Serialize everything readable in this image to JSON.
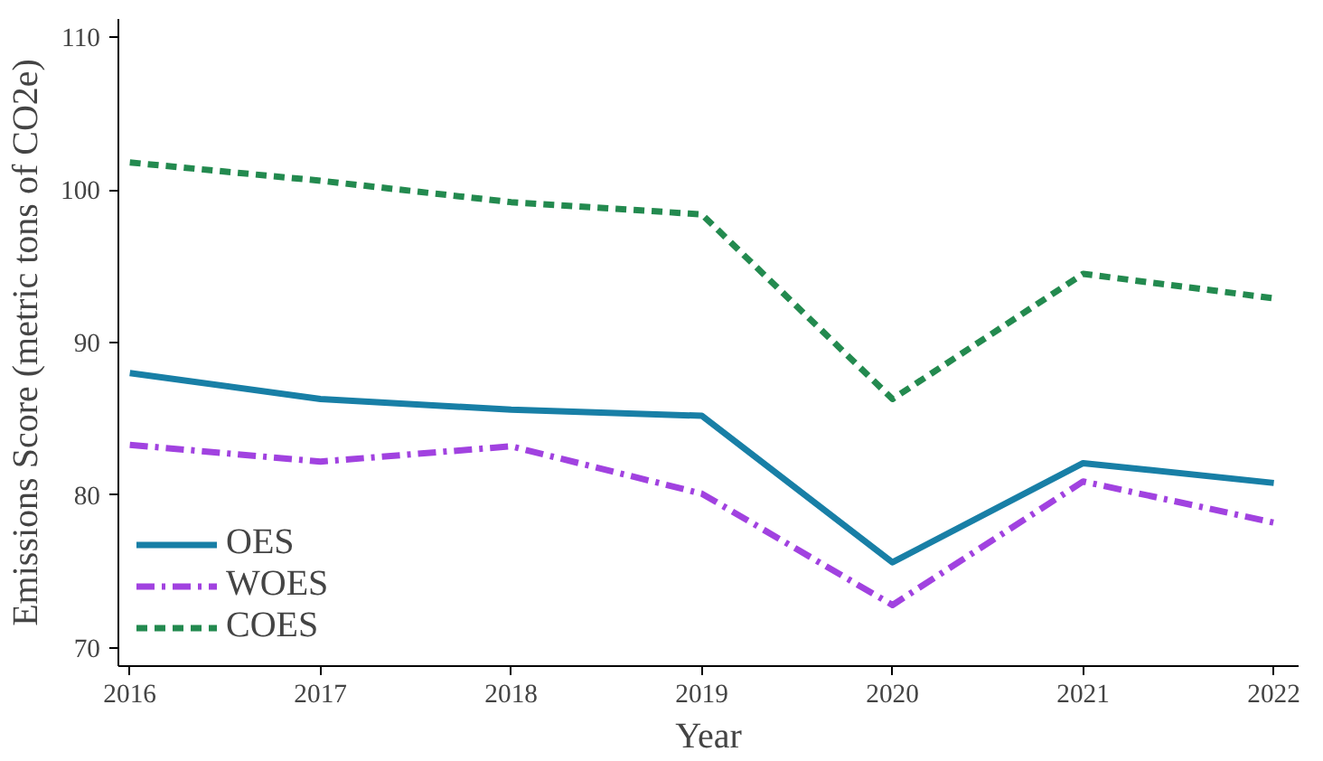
{
  "chart_data": {
    "type": "line",
    "xlabel": "Year",
    "ylabel": "Emissions Score (metric tons of CO2e)",
    "x": [
      2016,
      2017,
      2018,
      2019,
      2020,
      2021,
      2022
    ],
    "xlim": [
      2015.94,
      2022.13
    ],
    "xticks": [
      2016,
      2017,
      2018,
      2019,
      2020,
      2021,
      2022
    ],
    "ylim": [
      68.8,
      111.2
    ],
    "yticks": [
      70,
      80,
      90,
      100,
      110
    ],
    "grid": false,
    "legend": "bottom left",
    "marker": "none",
    "series": [
      {
        "name": "OES",
        "color": "#187fa6",
        "line_style": "solid",
        "values": [
          88.0,
          86.3,
          85.6,
          85.2,
          75.6,
          82.1,
          80.8
        ]
      },
      {
        "name": "WOES",
        "color": "#a142e0",
        "line_style": "dashdot",
        "values": [
          83.3,
          82.2,
          83.2,
          80.1,
          72.8,
          80.9,
          78.2
        ]
      },
      {
        "name": "COES",
        "color": "#238a4f",
        "line_style": "dashed",
        "values": [
          101.8,
          100.6,
          99.2,
          98.4,
          86.3,
          94.5,
          92.9
        ]
      }
    ]
  }
}
